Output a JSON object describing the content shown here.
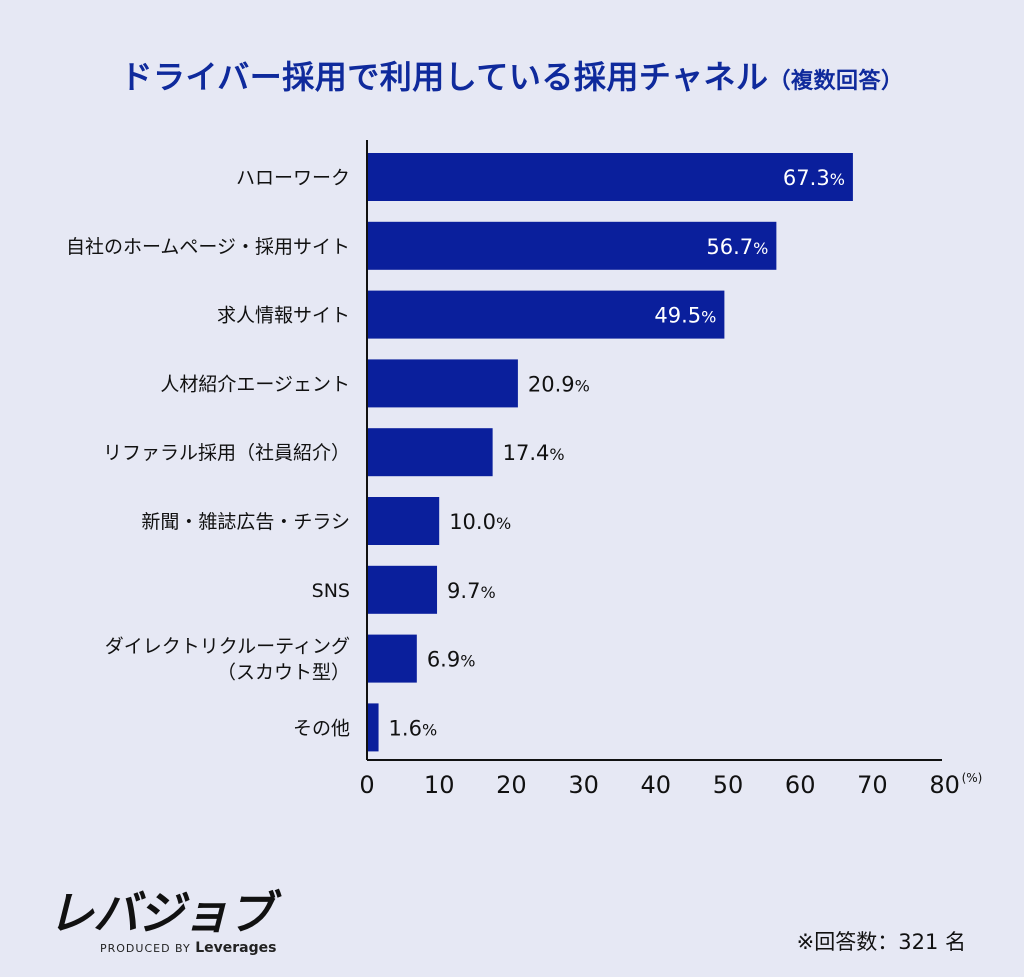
{
  "chart_data": {
    "type": "bar",
    "orientation": "horizontal",
    "title": "ドライバー採用で利用している採用チャネル",
    "subtitle": "（複数回答）",
    "categories": [
      "ハローワーク",
      "自社のホームページ・採用サイト",
      "求人情報サイト",
      "人材紹介エージェント",
      "リファラル採用（社員紹介）",
      "新聞・雑誌広告・チラシ",
      "SNS",
      "ダイレクトリクルーティング\n（スカウト型）",
      "その他"
    ],
    "values": [
      67.3,
      56.7,
      49.5,
      20.9,
      17.4,
      10.0,
      9.7,
      6.9,
      1.6
    ],
    "value_suffix": "%",
    "xlim": [
      0,
      80
    ],
    "xticks": [
      0,
      10,
      20,
      30,
      40,
      50,
      60,
      70,
      80
    ],
    "xunit": "(%)",
    "bar_color": "#0a1f9c",
    "grid": false
  },
  "footnote": "※回答数：321 名",
  "logo": {
    "wordmark": "レバジョブ",
    "produced_by": "PRODUCED BY",
    "brand": "Leverages"
  },
  "colors": {
    "background": "#e6e8f4",
    "title": "#0f2a9c",
    "bar": "#0a1f9c"
  }
}
